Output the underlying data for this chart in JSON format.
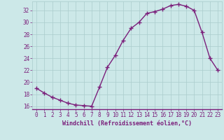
{
  "x": [
    0,
    1,
    2,
    3,
    4,
    5,
    6,
    7,
    8,
    9,
    10,
    11,
    12,
    13,
    14,
    15,
    16,
    17,
    18,
    19,
    20,
    21,
    22,
    23
  ],
  "y": [
    19.0,
    18.2,
    17.5,
    17.0,
    16.5,
    16.2,
    16.1,
    16.0,
    19.2,
    22.5,
    24.5,
    27.0,
    29.0,
    30.0,
    31.5,
    31.8,
    32.2,
    32.8,
    33.0,
    32.7,
    32.0,
    28.3,
    24.0,
    22.0
  ],
  "line_color": "#7b1f7b",
  "marker": "+",
  "marker_size": 4,
  "marker_linewidth": 1.0,
  "line_width": 1.0,
  "background_color": "#cce8e8",
  "grid_color": "#aacccc",
  "xlabel": "Windchill (Refroidissement éolien,°C)",
  "xlabel_color": "#7b1f7b",
  "xlabel_fontsize": 6.0,
  "tick_color": "#7b1f7b",
  "tick_fontsize": 5.5,
  "ylim": [
    15.5,
    33.5
  ],
  "yticks": [
    16,
    18,
    20,
    22,
    24,
    26,
    28,
    30,
    32
  ],
  "xlim": [
    -0.5,
    23.5
  ],
  "xticks": [
    0,
    1,
    2,
    3,
    4,
    5,
    6,
    7,
    8,
    9,
    10,
    11,
    12,
    13,
    14,
    15,
    16,
    17,
    18,
    19,
    20,
    21,
    22,
    23
  ]
}
